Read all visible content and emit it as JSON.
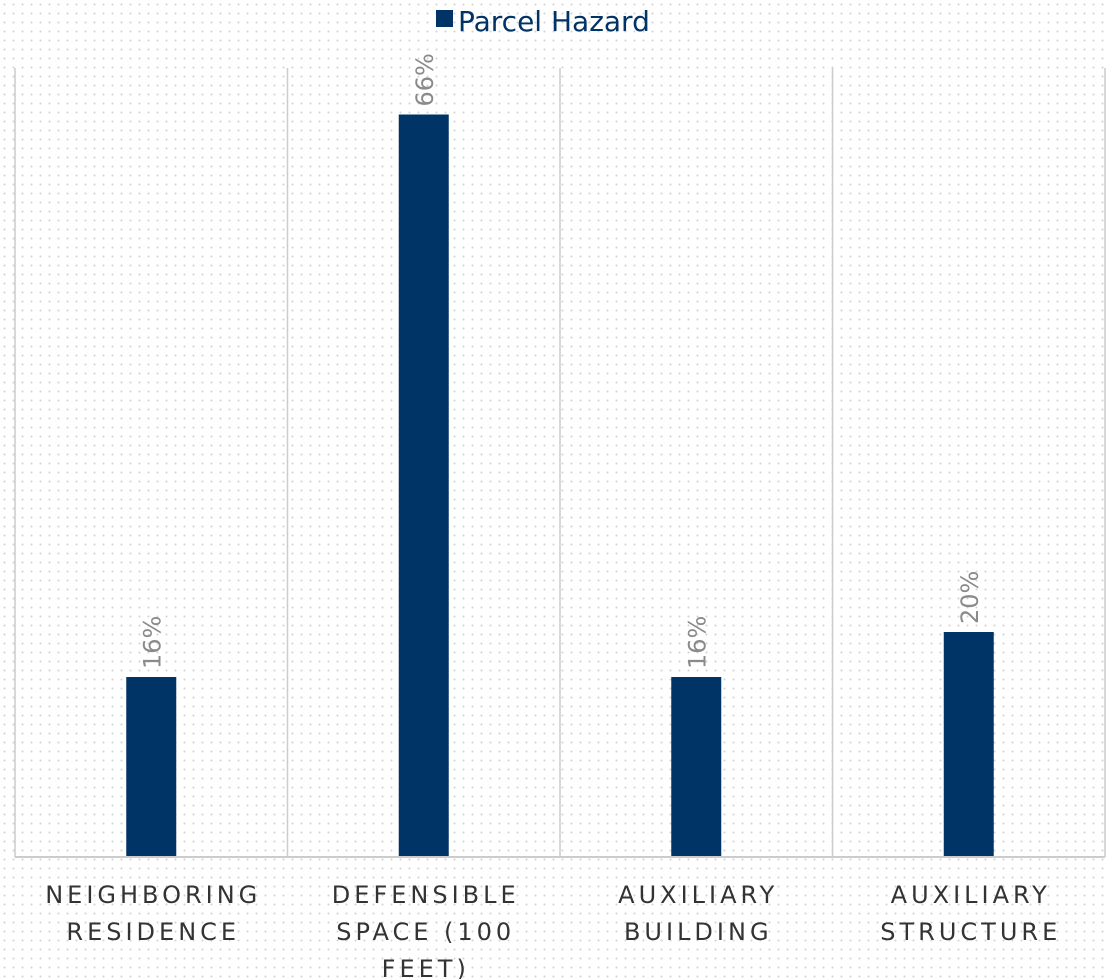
{
  "chart_data": {
    "type": "bar",
    "categories": [
      [
        "NEIGHBORING",
        "RESIDENCE"
      ],
      [
        "DEFENSIBLE",
        "SPACE (100",
        "FEET)"
      ],
      [
        "AUXILIARY",
        "BUILDING"
      ],
      [
        "AUXILIARY",
        "STRUCTURE"
      ]
    ],
    "series": [
      {
        "name": "Parcel Hazard",
        "values": [
          16,
          66,
          16,
          20
        ],
        "labels": [
          "16%",
          "66%",
          "16%",
          "20%"
        ],
        "color": "#003366"
      }
    ],
    "ylim": [
      0,
      70
    ],
    "grid": "vertical category separators",
    "legend": "top-center",
    "colors": {
      "bar": "#003366",
      "data_label": "#8a8a8a",
      "axis": "#cccccc",
      "category_text": "#333333"
    }
  }
}
